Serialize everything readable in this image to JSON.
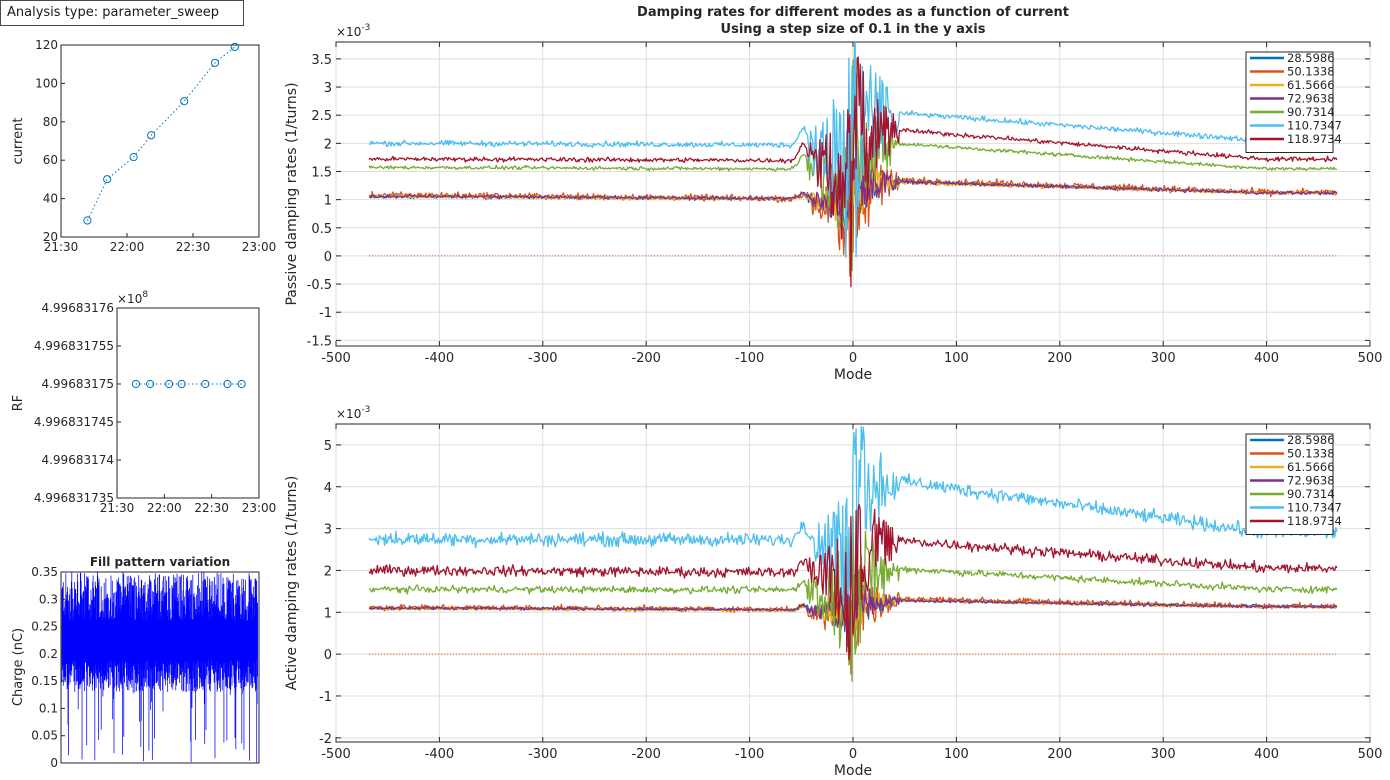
{
  "analysis_label": "Analysis type: parameter_sweep",
  "colors": {
    "matlab": [
      "#0072BD",
      "#D95319",
      "#EDB120",
      "#7E2F8E",
      "#77AC30",
      "#4DBEEE",
      "#A2142F"
    ],
    "fill_blue": "#0000FF",
    "zero_line": "#D95319"
  },
  "chart_data": [
    {
      "id": "current-plot",
      "type": "line",
      "ylabel": "current",
      "x": [
        "21:42",
        "21:51",
        "22:03",
        "22:11",
        "22:26",
        "22:40",
        "22:49"
      ],
      "values": [
        28.6,
        50.1,
        61.6,
        73.0,
        90.7,
        110.7,
        119.0
      ],
      "xticks": [
        "21:30",
        "22:00",
        "22:30",
        "23:00"
      ],
      "yticks": [
        "20",
        "40",
        "60",
        "80",
        "100",
        "120"
      ],
      "ylim": [
        20,
        120
      ],
      "marker": "circle",
      "linestyle": "dotted"
    },
    {
      "id": "rf-plot",
      "type": "line",
      "ylabel": "RF",
      "exponent_label": "×10",
      "exponent_power": "8",
      "x": [
        "21:42",
        "21:51",
        "22:03",
        "22:11",
        "22:26",
        "22:40",
        "22:49"
      ],
      "values": [
        4.99683175,
        4.99683175,
        4.99683175,
        4.99683175,
        4.99683175,
        4.99683175,
        4.99683175
      ],
      "xticks": [
        "21:30",
        "22:00",
        "22:30",
        "23:00"
      ],
      "yticks": [
        "4.99683176",
        "4.996831755",
        "4.99683175",
        "4.996831745",
        "4.99683174",
        "4.996831735"
      ],
      "ylim": [
        4.996831735,
        4.99683176
      ],
      "marker": "circle",
      "linestyle": "dotted"
    },
    {
      "id": "fill-pattern",
      "type": "area",
      "title": "Fill pattern variation",
      "ylabel": "Charge (nC)",
      "yticks": [
        "0.35",
        "0.3",
        "0.25",
        "0.2",
        "0.15",
        "0.1",
        "0.05",
        "0"
      ],
      "ylim": [
        0,
        0.35
      ],
      "bunches": 936,
      "typical_range": [
        0.15,
        0.34
      ]
    },
    {
      "id": "passive-plot",
      "type": "line",
      "figure_title": "Damping rates for different modes as a function of current",
      "figure_subtitle": "Using a step size of 0.1 in the y axis",
      "xlabel": "Mode",
      "ylabel": "Passive damping rates (1/turns)",
      "exponent_label": "×10",
      "exponent_power": "-3",
      "xlim": [
        -500,
        500
      ],
      "ylim": [
        -1.6,
        3.8
      ],
      "xticks": [
        "-500",
        "-400",
        "-300",
        "-200",
        "-100",
        "0",
        "100",
        "200",
        "300",
        "400",
        "500"
      ],
      "yticks": [
        "3.5",
        "3",
        "2.5",
        "2",
        "1.5",
        "1",
        "0.5",
        "0",
        "-0.5",
        "-1",
        "-1.5"
      ],
      "legend": "top-right",
      "grid": true,
      "mode_range": [
        -468,
        468
      ],
      "series": [
        {
          "name": "28.5986",
          "left": 1.05,
          "peak": 1.35,
          "right": 1.12
        },
        {
          "name": "50.1338",
          "left": 1.08,
          "peak": 1.38,
          "right": 1.13
        },
        {
          "name": "61.5666",
          "left": 1.05,
          "peak": 1.32,
          "right": 1.12
        },
        {
          "name": "72.9638",
          "left": 1.06,
          "peak": 1.34,
          "right": 1.12
        },
        {
          "name": "90.7314",
          "left": 1.57,
          "peak": 2.05,
          "right": 1.55
        },
        {
          "name": "110.7347",
          "left": 2.0,
          "peak": 2.6,
          "right": 2.05
        },
        {
          "name": "118.9734",
          "left": 1.72,
          "peak": 2.3,
          "right": 1.72
        }
      ]
    },
    {
      "id": "active-plot",
      "type": "line",
      "xlabel": "Mode",
      "ylabel": "Active damping rates (1/turns)",
      "exponent_label": "×10",
      "exponent_power": "-3",
      "xlim": [
        -500,
        500
      ],
      "ylim": [
        -2.1,
        5.5
      ],
      "xticks": [
        "-500",
        "-400",
        "-300",
        "-200",
        "-100",
        "0",
        "100",
        "200",
        "300",
        "400",
        "500"
      ],
      "yticks": [
        "5",
        "4",
        "3",
        "2",
        "1",
        "0",
        "-1",
        "-2"
      ],
      "legend": "top-right",
      "grid": true,
      "mode_range": [
        -468,
        468
      ],
      "series": [
        {
          "name": "28.5986",
          "left": 1.1,
          "peak": 1.3,
          "right": 1.15
        },
        {
          "name": "50.1338",
          "left": 1.12,
          "peak": 1.35,
          "right": 1.15
        },
        {
          "name": "61.5666",
          "left": 1.08,
          "peak": 1.3,
          "right": 1.12
        },
        {
          "name": "72.9638",
          "left": 1.1,
          "peak": 1.3,
          "right": 1.13
        },
        {
          "name": "90.7314",
          "left": 1.55,
          "peak": 2.1,
          "right": 1.55
        },
        {
          "name": "110.7347",
          "left": 2.75,
          "peak": 4.3,
          "right": 2.9
        },
        {
          "name": "118.9734",
          "left": 2.0,
          "peak": 2.8,
          "right": 2.05
        }
      ]
    }
  ]
}
